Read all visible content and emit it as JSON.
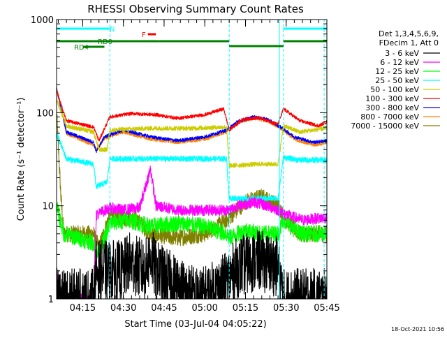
{
  "chart_data": {
    "type": "line",
    "title": "RHESSI Observing Summary Count Rates",
    "xlabel": "Start Time (03-Jul-04 04:05:22)",
    "ylabel": "Count Rate (s⁻¹ detector⁻¹)",
    "yscale": "log",
    "ylim": [
      1,
      1000
    ],
    "xlim": [
      "04:05:22",
      "05:45:00"
    ],
    "x_ticks": [
      "04:15",
      "04:30",
      "04:45",
      "05:00",
      "05:15",
      "05:30",
      "05:45"
    ],
    "y_ticks": [
      "1",
      "10",
      "100",
      "1000"
    ],
    "grid": false,
    "legend_position": "right",
    "legend_header": [
      "Det 1,3,4,5,6,9,",
      "FDecim 1, Att 0"
    ],
    "timestamp": "18-Oct-2021 10:56",
    "flag_bars": [
      {
        "label": "N",
        "color": "#00ffff",
        "segments": [
          [
            "04:05:22",
            "04:25:00"
          ],
          [
            "05:29:00",
            "05:45:00"
          ]
        ]
      },
      {
        "label": "F",
        "color": "#ff0000",
        "segments": [
          [
            "04:39:00",
            "04:42:00"
          ]
        ]
      },
      {
        "label": "RD0",
        "color": "#008000",
        "segments": [
          [
            "04:05:22",
            "04:43:00"
          ],
          [
            "04:43:00",
            "05:09:00"
          ],
          [
            "05:29:00",
            "05:45:00"
          ]
        ]
      },
      {
        "label": "RD4",
        "color": "#008000",
        "segments": [
          [
            "04:15:00",
            "04:23:00"
          ],
          [
            "05:09:00",
            "05:29:00"
          ]
        ]
      }
    ],
    "transitions": [
      "04:25:00",
      "05:09:00",
      "05:27:30",
      "05:29:00",
      "05:44:00"
    ],
    "series": [
      {
        "name": "3 - 6 keV",
        "color": "#000000",
        "noise": 0.55,
        "points": [
          [
            "04:05:22",
            1
          ],
          [
            "04:19:00",
            1
          ],
          [
            "04:20:00",
            2
          ],
          [
            "04:30:00",
            2
          ],
          [
            "04:32:00",
            2.5
          ],
          [
            "04:38:00",
            2
          ],
          [
            "04:40:00",
            3
          ],
          [
            "04:42:00",
            2
          ],
          [
            "04:48:00",
            1.5
          ],
          [
            "04:58:00",
            1
          ],
          [
            "05:03:00",
            1.2
          ],
          [
            "05:08:00",
            1.5
          ],
          [
            "05:12:00",
            2.2
          ],
          [
            "05:20:00",
            2.6
          ],
          [
            "05:27:00",
            2.2
          ],
          [
            "05:29:00",
            1
          ],
          [
            "05:45:00",
            1
          ]
        ]
      },
      {
        "name": "6 - 12 keV",
        "color": "#ff00ff",
        "noise": 0.1,
        "points": [
          [
            "04:05:22",
            1.8
          ],
          [
            "04:07:00",
            1
          ],
          [
            "04:19:00",
            1
          ],
          [
            "04:20:00",
            8
          ],
          [
            "04:25:00",
            9.5
          ],
          [
            "04:30:00",
            9
          ],
          [
            "04:36:00",
            9.5
          ],
          [
            "04:40:00",
            25
          ],
          [
            "04:42:00",
            10
          ],
          [
            "04:50:00",
            9
          ],
          [
            "05:05:00",
            9
          ],
          [
            "05:09:00",
            9
          ],
          [
            "05:12:00",
            10
          ],
          [
            "05:18:00",
            11
          ],
          [
            "05:23:00",
            10
          ],
          [
            "05:27:00",
            9
          ],
          [
            "05:30:00",
            8
          ],
          [
            "05:36:00",
            7
          ],
          [
            "05:45:00",
            7.5
          ]
        ]
      },
      {
        "name": "12 - 25 keV",
        "color": "#00ff00",
        "noise": 0.15,
        "points": [
          [
            "04:05:22",
            10
          ],
          [
            "04:08:00",
            5
          ],
          [
            "04:19:00",
            4
          ],
          [
            "04:21:00",
            3
          ],
          [
            "04:25:00",
            6.5
          ],
          [
            "04:32:00",
            7
          ],
          [
            "04:40:00",
            6
          ],
          [
            "04:50:00",
            6.5
          ],
          [
            "05:00:00",
            6
          ],
          [
            "05:08:00",
            5
          ],
          [
            "05:09:00",
            4.5
          ],
          [
            "05:15:00",
            5.5
          ],
          [
            "05:20:00",
            5
          ],
          [
            "05:27:00",
            5
          ],
          [
            "05:29:00",
            7
          ],
          [
            "05:35:00",
            5
          ],
          [
            "05:45:00",
            5
          ]
        ]
      },
      {
        "name": "25 - 50 keV",
        "color": "#00ffff",
        "noise": 0.05,
        "points": [
          [
            "04:05:22",
            60
          ],
          [
            "04:09:00",
            32
          ],
          [
            "04:19:00",
            28
          ],
          [
            "04:20:00",
            16
          ],
          [
            "04:24:00",
            18
          ],
          [
            "04:25:00",
            32
          ],
          [
            "04:40:00",
            32
          ],
          [
            "04:55:00",
            32
          ],
          [
            "05:08:00",
            32
          ],
          [
            "05:09:00",
            12
          ],
          [
            "05:20:00",
            12
          ],
          [
            "05:27:00",
            12
          ],
          [
            "05:29:00",
            33
          ],
          [
            "05:35:00",
            31
          ],
          [
            "05:45:00",
            31
          ]
        ]
      },
      {
        "name": "50 - 100 keV",
        "color": "#cccc00",
        "noise": 0.04,
        "points": [
          [
            "04:05:22",
            140
          ],
          [
            "04:09:00",
            72
          ],
          [
            "04:19:00",
            62
          ],
          [
            "04:21:00",
            40
          ],
          [
            "04:24:00",
            40
          ],
          [
            "04:25:00",
            65
          ],
          [
            "04:40:00",
            68
          ],
          [
            "04:55:00",
            68
          ],
          [
            "05:08:00",
            70
          ],
          [
            "05:09:00",
            27
          ],
          [
            "05:20:00",
            28
          ],
          [
            "05:27:00",
            28
          ],
          [
            "05:29:00",
            72
          ],
          [
            "05:35:00",
            62
          ],
          [
            "05:45:00",
            68
          ]
        ]
      },
      {
        "name": "100 - 300 keV",
        "color": "#ff0000",
        "noise": 0.03,
        "points": [
          [
            "04:05:22",
            170
          ],
          [
            "04:09:00",
            82
          ],
          [
            "04:19:00",
            70
          ],
          [
            "04:21:00",
            50
          ],
          [
            "04:25:00",
            90
          ],
          [
            "04:33:00",
            98
          ],
          [
            "04:42:00",
            95
          ],
          [
            "04:50:00",
            87
          ],
          [
            "05:00:00",
            95
          ],
          [
            "05:07:00",
            110
          ],
          [
            "05:09:00",
            65
          ],
          [
            "05:14:00",
            85
          ],
          [
            "05:20:00",
            88
          ],
          [
            "05:27:00",
            75
          ],
          [
            "05:29:00",
            110
          ],
          [
            "05:35:00",
            82
          ],
          [
            "05:42:00",
            72
          ],
          [
            "05:45:00",
            80
          ]
        ]
      },
      {
        "name": "300 - 800 keV",
        "color": "#0000ff",
        "noise": 0.03,
        "points": [
          [
            "04:05:22",
            180
          ],
          [
            "04:09:00",
            62
          ],
          [
            "04:19:00",
            48
          ],
          [
            "04:20:00",
            38
          ],
          [
            "04:23:00",
            55
          ],
          [
            "04:30:00",
            65
          ],
          [
            "04:40:00",
            55
          ],
          [
            "04:50:00",
            50
          ],
          [
            "05:00:00",
            55
          ],
          [
            "05:08:00",
            65
          ],
          [
            "05:12:00",
            80
          ],
          [
            "05:18:00",
            90
          ],
          [
            "05:23:00",
            85
          ],
          [
            "05:28:00",
            70
          ],
          [
            "05:33:00",
            55
          ],
          [
            "05:40:00",
            48
          ],
          [
            "05:45:00",
            50
          ]
        ]
      },
      {
        "name": "800 - 7000 keV",
        "color": "#ff8000",
        "noise": 0.03,
        "points": [
          [
            "04:05:22",
            190
          ],
          [
            "04:09:00",
            60
          ],
          [
            "04:19:00",
            45
          ],
          [
            "04:20:00",
            40
          ],
          [
            "04:23:00",
            53
          ],
          [
            "04:30:00",
            62
          ],
          [
            "04:40:00",
            52
          ],
          [
            "04:50:00",
            48
          ],
          [
            "05:00:00",
            52
          ],
          [
            "05:08:00",
            62
          ],
          [
            "05:12:00",
            78
          ],
          [
            "05:18:00",
            87
          ],
          [
            "05:23:00",
            82
          ],
          [
            "05:28:00",
            68
          ],
          [
            "05:33:00",
            52
          ],
          [
            "05:40:00",
            45
          ],
          [
            "05:45:00",
            47
          ]
        ]
      },
      {
        "name": "7000 - 15000 keV",
        "color": "#808000",
        "noise": 0.15,
        "points": [
          [
            "04:05:22",
            100
          ],
          [
            "04:07:00",
            12
          ],
          [
            "04:08:00",
            5
          ],
          [
            "04:19:00",
            5
          ],
          [
            "04:21:00",
            3.5
          ],
          [
            "04:25:00",
            8
          ],
          [
            "04:35:00",
            7
          ],
          [
            "04:40:00",
            5
          ],
          [
            "04:50:00",
            4.5
          ],
          [
            "05:00:00",
            5
          ],
          [
            "05:08:00",
            7
          ],
          [
            "05:15:00",
            11
          ],
          [
            "05:21:00",
            12.5
          ],
          [
            "05:27:00",
            10
          ],
          [
            "05:30:00",
            7
          ],
          [
            "05:35:00",
            5
          ],
          [
            "05:45:00",
            5
          ]
        ]
      }
    ]
  }
}
